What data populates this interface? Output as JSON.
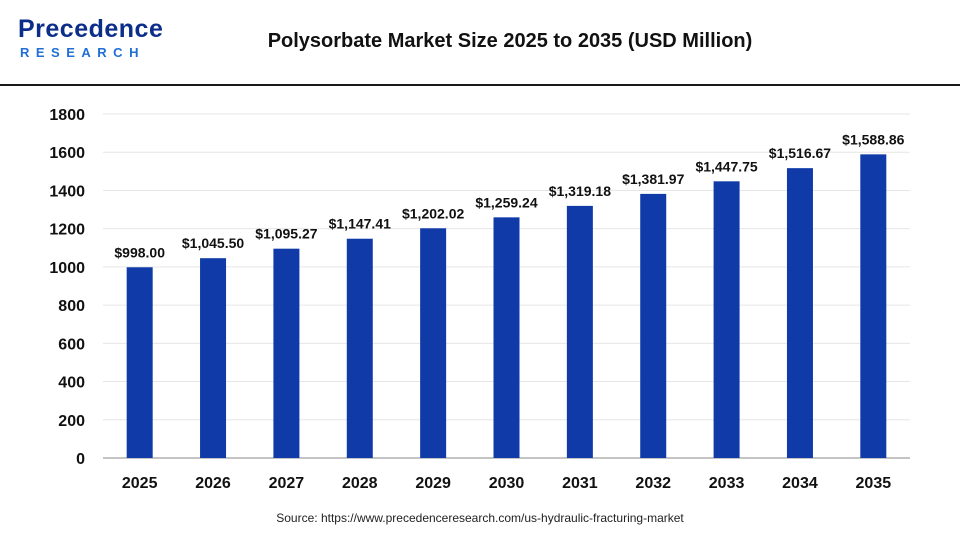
{
  "header": {
    "logo_main": "Precedence",
    "logo_sub": "RESEARCH",
    "title": "Polysorbate Market Size 2025 to 2035 (USD Million)"
  },
  "colors": {
    "bar": "#0f3aa8",
    "logo_dark": "#0b2e8a",
    "logo_light": "#1f6fd6",
    "grid": "#e6e6e6"
  },
  "source": "Source: https://www.precedenceresearch.com/us-hydraulic-fracturing-market",
  "chart_data": {
    "type": "bar",
    "title": "Polysorbate Market Size 2025 to 2035 (USD Million)",
    "xlabel": "",
    "ylabel": "",
    "categories": [
      "2025",
      "2026",
      "2027",
      "2028",
      "2029",
      "2030",
      "2031",
      "2032",
      "2033",
      "2034",
      "2035"
    ],
    "values": [
      998.0,
      1045.5,
      1095.27,
      1147.41,
      1202.02,
      1259.24,
      1319.18,
      1381.97,
      1447.75,
      1516.67,
      1588.86
    ],
    "data_labels": [
      "$998.00",
      "$1,045.50",
      "$1,095.27",
      "$1,147.41",
      "$1,202.02",
      "$1,259.24",
      "$1,319.18",
      "$1,381.97",
      "$1,447.75",
      "$1,516.67",
      "$1,588.86"
    ],
    "y_ticks": [
      "0",
      "200",
      "400",
      "600",
      "800",
      "1000",
      "1200",
      "1400",
      "1600",
      "1800"
    ],
    "ylim": [
      0,
      1800
    ],
    "grid": true,
    "legend": "none"
  }
}
